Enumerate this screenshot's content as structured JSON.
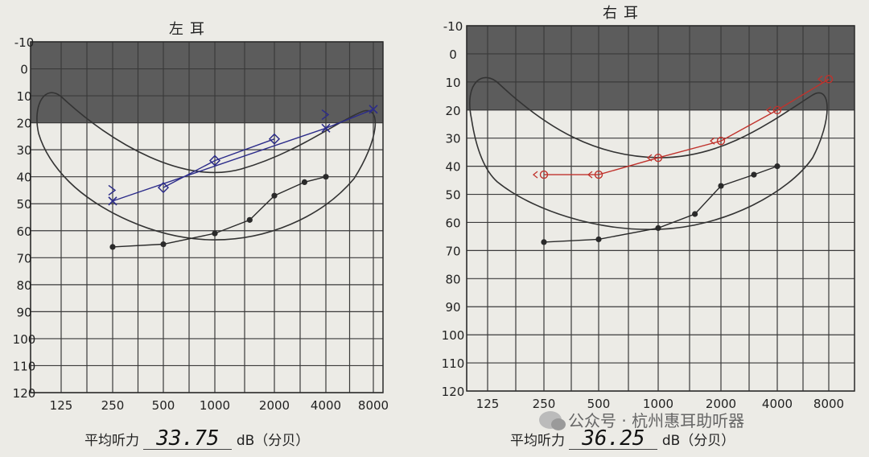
{
  "chart_data": [
    {
      "type": "line",
      "title": "左耳",
      "x_ticks": [
        "125",
        "250",
        "500",
        "1000",
        "2000",
        "4000",
        "8000"
      ],
      "y_ticks": [
        -10,
        0,
        10,
        20,
        30,
        40,
        50,
        60,
        70,
        80,
        90,
        100,
        110,
        120
      ],
      "ylim": [
        -10,
        120
      ],
      "y_inverted": true,
      "shaded_range": [
        -10,
        20
      ],
      "series": [
        {
          "marker": "dot",
          "color": "#2a2a2a",
          "points": [
            [
              250,
              66
            ],
            [
              500,
              65
            ],
            [
              1000,
              61
            ],
            [
              1500,
              56
            ],
            [
              2000,
              47
            ],
            [
              3000,
              42
            ],
            [
              4000,
              40
            ]
          ]
        },
        {
          "marker": "cross",
          "color": "#2c2c8a",
          "points": [
            [
              250,
              49
            ],
            [
              4000,
              22
            ],
            [
              8000,
              15
            ]
          ]
        },
        {
          "marker": "diamond",
          "color": "#2c2c8a",
          "points": [
            [
              500,
              44
            ],
            [
              1000,
              34
            ],
            [
              2000,
              26
            ]
          ]
        },
        {
          "marker": "bracket",
          "color": "#2c2c8a",
          "points": [
            [
              250,
              45
            ],
            [
              4000,
              17
            ]
          ]
        }
      ]
    },
    {
      "type": "line",
      "title": "右耳",
      "x_ticks": [
        "125",
        "250",
        "500",
        "1000",
        "2000",
        "4000",
        "8000"
      ],
      "y_ticks": [
        -10,
        0,
        10,
        20,
        30,
        40,
        50,
        60,
        70,
        80,
        90,
        100,
        110,
        120
      ],
      "ylim": [
        -10,
        120
      ],
      "y_inverted": true,
      "shaded_range": [
        -10,
        20
      ],
      "series": [
        {
          "marker": "dot",
          "color": "#2a2a2a",
          "points": [
            [
              250,
              67
            ],
            [
              500,
              66
            ],
            [
              1000,
              62
            ],
            [
              1500,
              57
            ],
            [
              2000,
              47
            ],
            [
              3000,
              43
            ],
            [
              4000,
              40
            ]
          ]
        },
        {
          "marker": "circle",
          "color": "#c0322c",
          "points": [
            [
              250,
              43
            ],
            [
              500,
              43
            ],
            [
              1000,
              37
            ],
            [
              2000,
              31
            ],
            [
              4000,
              20
            ],
            [
              8000,
              9
            ]
          ]
        }
      ]
    }
  ],
  "left_average": {
    "label": "平均听力",
    "value": "33.75",
    "unit": "dB（分贝）"
  },
  "right_average": {
    "label": "平均听力",
    "value": "36.25",
    "unit": "dB（分贝）"
  },
  "watermark": {
    "text": "公众号 · 杭州惠耳助听器",
    "icon": "wechat-icon"
  }
}
